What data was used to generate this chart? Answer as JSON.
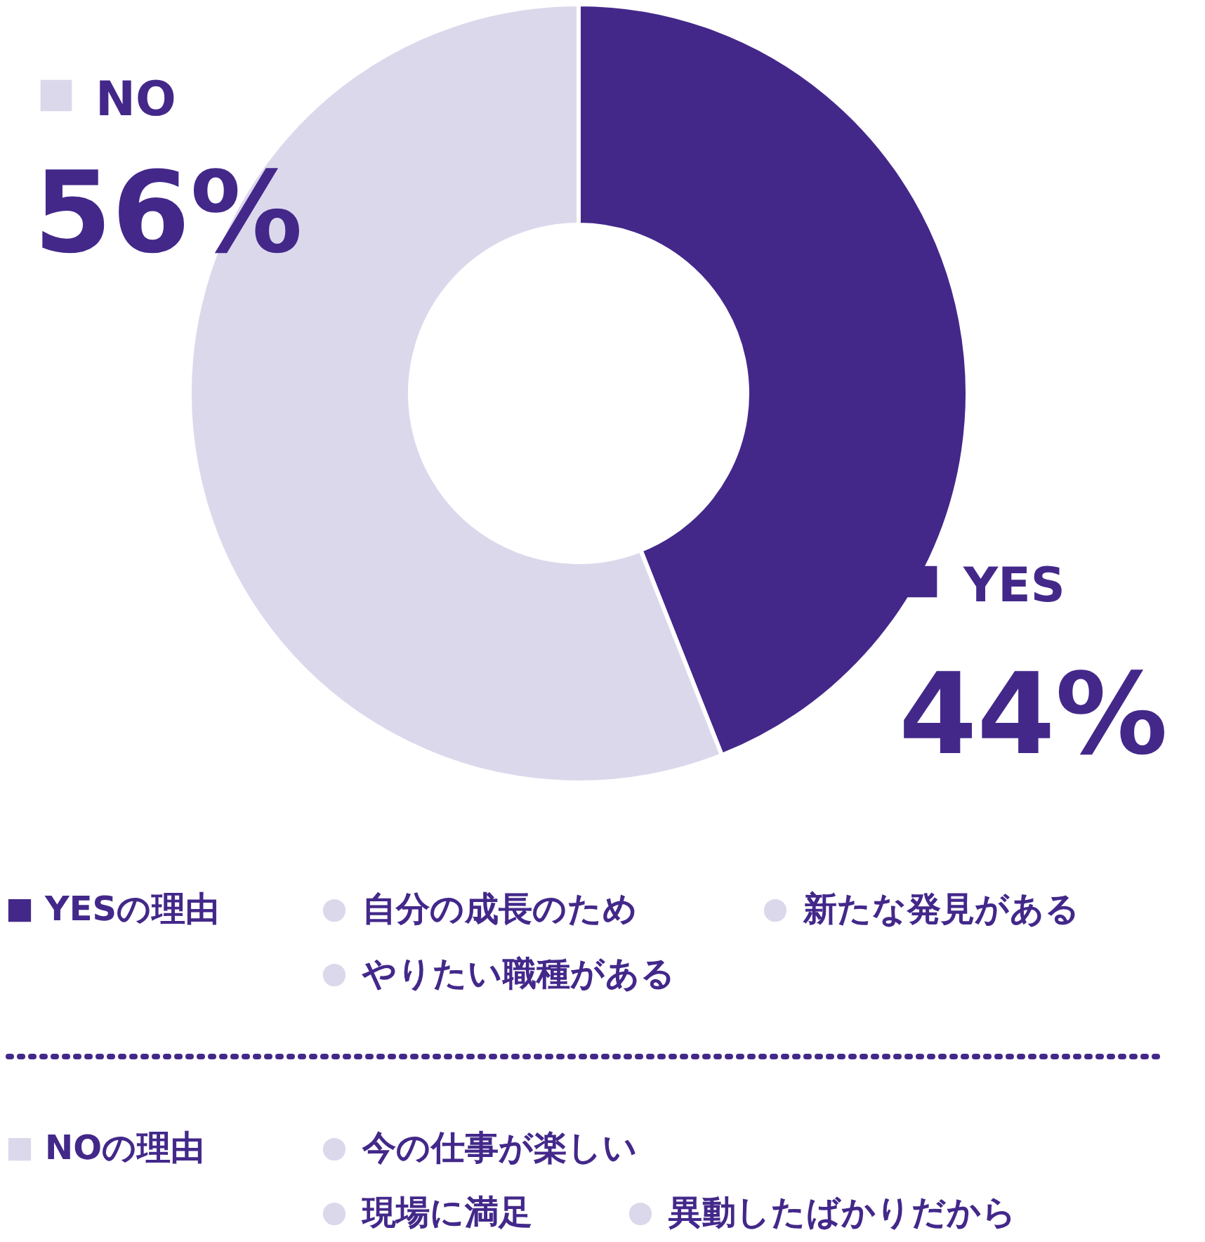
{
  "chart_data": {
    "type": "donut",
    "categories": [
      "YES",
      "NO"
    ],
    "values": [
      44,
      56
    ],
    "colors": [
      "#43288a",
      "#dcd8ec"
    ],
    "value_labels": [
      "44%",
      "56%"
    ],
    "legend": "top left",
    "annotations": [
      "YESの理由",
      "自分の成長のため",
      "新たな発見がある",
      "やりたい職種がある",
      "NOの理由",
      "今の仕事が楽しい",
      "現場に満足",
      "異動したばかりだから"
    ]
  }
}
